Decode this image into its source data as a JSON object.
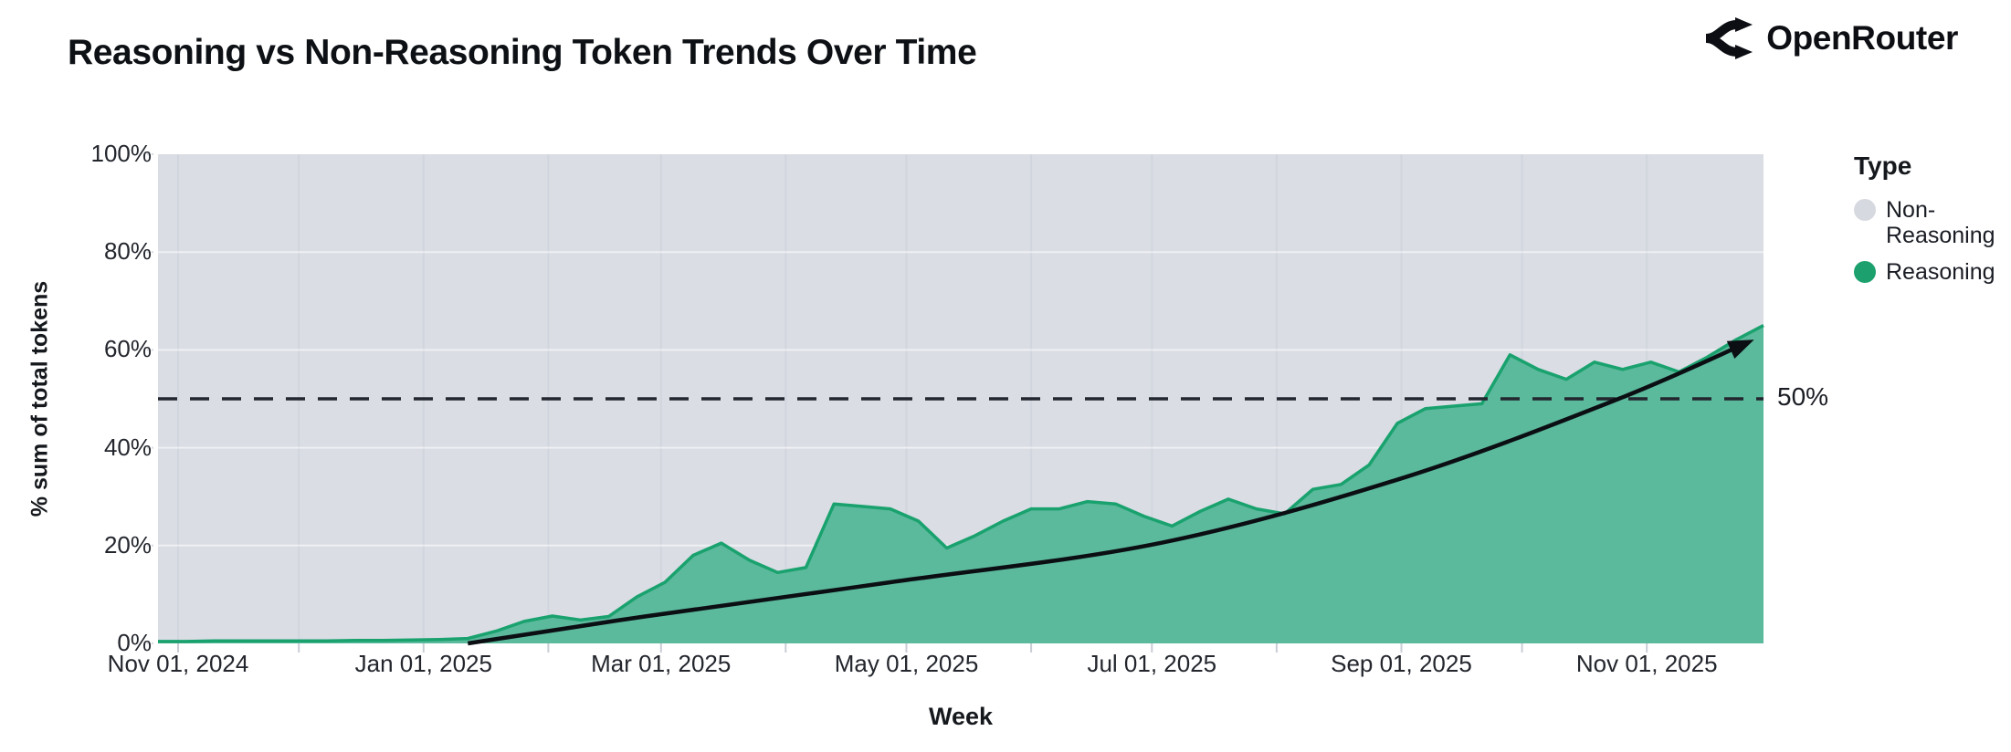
{
  "header": {
    "title": "Reasoning vs Non-Reasoning Token Trends Over Time",
    "brand": "OpenRouter"
  },
  "chart_data": {
    "type": "area",
    "stacking": "percent-of-total, Non-Reasoning fills remainder to 100%",
    "title": "Reasoning vs Non-Reasoning Token Trends Over Time",
    "xlabel": "Week",
    "ylabel": "% sum of total tokens",
    "ylim": [
      0,
      100
    ],
    "x_range": [
      "2024-10-27",
      "2025-11-30"
    ],
    "grid": "monthly vertical, 20% horizontal",
    "y_ticks": [
      {
        "value": 0,
        "label": "0%"
      },
      {
        "value": 20,
        "label": "20%"
      },
      {
        "value": 40,
        "label": "40%"
      },
      {
        "value": 60,
        "label": "60%"
      },
      {
        "value": 80,
        "label": "80%"
      },
      {
        "value": 100,
        "label": "100%"
      }
    ],
    "x_ticks": [
      {
        "date": "2024-11-01",
        "label": "Nov 01, 2024"
      },
      {
        "date": "2025-01-01",
        "label": "Jan 01, 2025"
      },
      {
        "date": "2025-03-01",
        "label": "Mar 01, 2025"
      },
      {
        "date": "2025-05-01",
        "label": "May 01, 2025"
      },
      {
        "date": "2025-07-01",
        "label": "Jul 01, 2025"
      },
      {
        "date": "2025-09-01",
        "label": "Sep 01, 2025"
      },
      {
        "date": "2025-11-01",
        "label": "Nov 01, 2025"
      }
    ],
    "series": [
      {
        "name": "Reasoning",
        "color": "#19a26e",
        "fill": "#5bb99c",
        "dates": [
          "2024-10-27",
          "2024-11-03",
          "2024-11-10",
          "2024-11-17",
          "2024-11-24",
          "2024-12-01",
          "2024-12-08",
          "2024-12-15",
          "2024-12-22",
          "2024-12-29",
          "2025-01-05",
          "2025-01-12",
          "2025-01-19",
          "2025-01-26",
          "2025-02-02",
          "2025-02-09",
          "2025-02-16",
          "2025-02-23",
          "2025-03-02",
          "2025-03-09",
          "2025-03-16",
          "2025-03-23",
          "2025-03-30",
          "2025-04-06",
          "2025-04-13",
          "2025-04-20",
          "2025-04-27",
          "2025-05-04",
          "2025-05-11",
          "2025-05-18",
          "2025-05-25",
          "2025-06-01",
          "2025-06-08",
          "2025-06-15",
          "2025-06-22",
          "2025-06-29",
          "2025-07-06",
          "2025-07-13",
          "2025-07-20",
          "2025-07-27",
          "2025-08-03",
          "2025-08-10",
          "2025-08-17",
          "2025-08-24",
          "2025-08-31",
          "2025-09-07",
          "2025-09-14",
          "2025-09-21",
          "2025-09-28",
          "2025-10-05",
          "2025-10-12",
          "2025-10-19",
          "2025-10-26",
          "2025-11-02",
          "2025-11-09",
          "2025-11-16",
          "2025-11-23",
          "2025-11-30"
        ],
        "values": [
          0.4,
          0.4,
          0.5,
          0.5,
          0.5,
          0.5,
          0.5,
          0.6,
          0.6,
          0.7,
          0.8,
          1.0,
          2.5,
          4.5,
          5.6,
          4.8,
          5.5,
          9.5,
          12.5,
          18,
          20.5,
          17,
          14.5,
          15.5,
          28.5,
          28,
          27.5,
          25,
          19.5,
          22,
          25,
          27.5,
          27.5,
          29,
          28.5,
          26,
          24,
          27,
          29.5,
          27.5,
          26.5,
          31.5,
          32.5,
          36.5,
          45,
          48,
          48.5,
          49,
          59,
          56,
          54,
          57.5,
          56,
          57.5,
          55.5,
          58.5,
          62,
          65
        ]
      },
      {
        "name": "Non-Reasoning",
        "color": "#d6d9df",
        "stacking": "remainder to 100%"
      }
    ],
    "annotations": {
      "reference_line": {
        "value": 50,
        "label": "50%",
        "style": "dashed"
      },
      "trend_arrow": {
        "description": "smooth rising arrow from ~0% in mid-Jan 2025 to ~61% in late Nov 2025",
        "points": [
          [
            "2025-01-12",
            0
          ],
          [
            "2025-02-25",
            5.5
          ],
          [
            "2025-04-27",
            12.5
          ],
          [
            "2025-07-03",
            20.5
          ],
          [
            "2025-09-02",
            34
          ],
          [
            "2025-10-25",
            50
          ],
          [
            "2025-11-26",
            61.5
          ]
        ]
      }
    },
    "legend": {
      "title": "Type",
      "position": "right",
      "items": [
        {
          "label": "Non-Reasoning",
          "color": "#d6d9df"
        },
        {
          "label": "Reasoning",
          "color": "#1ba06e"
        }
      ]
    },
    "colors": {
      "plot_bg": "#dadde4",
      "grid_vertical": "#d1d5dd",
      "grid_horizontal": "rgba(255,255,255,0.55)",
      "tick_mark": "#c9cdd5",
      "reference_line": "#23262e",
      "trend_line": "#0b0e12",
      "text": "#15181e"
    }
  }
}
